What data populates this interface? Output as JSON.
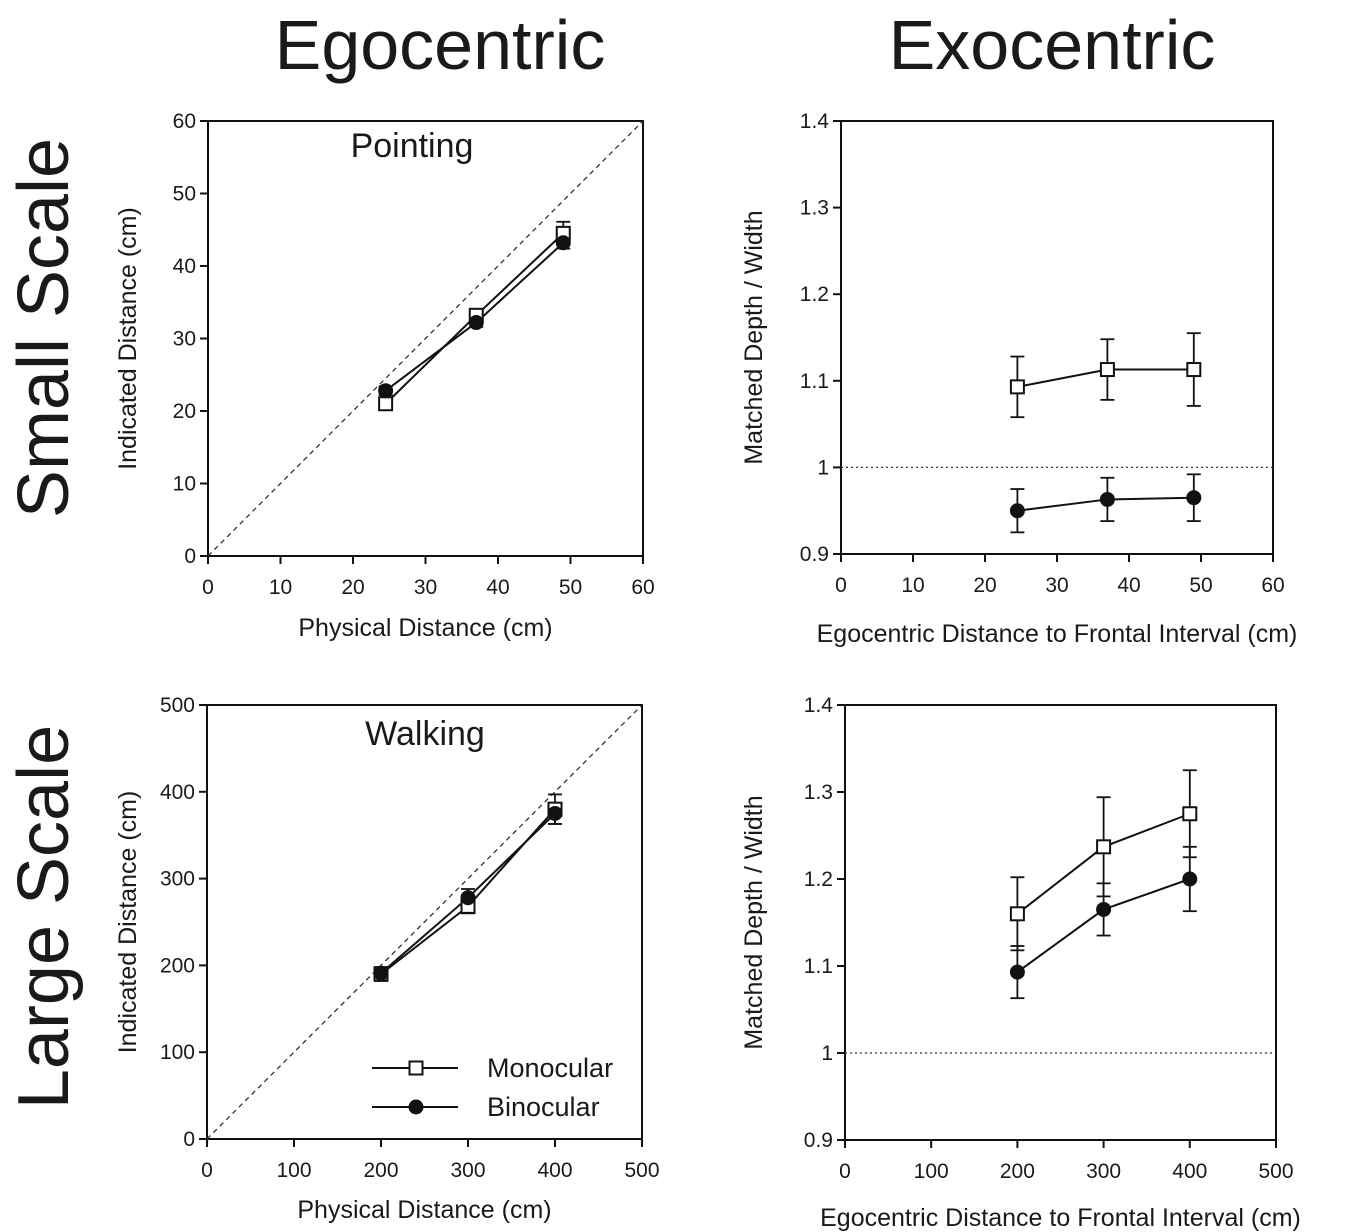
{
  "column_titles": [
    "Egocentric",
    "Exocentric"
  ],
  "row_titles": [
    "Small Scale",
    "Large Scale"
  ],
  "chart_data": [
    {
      "type": "line",
      "panel_title": "Pointing",
      "xlabel": "Physical Distance (cm)",
      "ylabel": "Indicated Distance (cm)",
      "xlim": [
        0,
        60
      ],
      "ylim": [
        0,
        60
      ],
      "xticks": [
        0,
        10,
        20,
        30,
        40,
        50,
        60
      ],
      "yticks": [
        0,
        10,
        20,
        30,
        40,
        50,
        60
      ],
      "reference_line": {
        "style": "dashed",
        "points": [
          [
            0,
            0
          ],
          [
            60,
            60
          ]
        ]
      },
      "series": [
        {
          "name": "Monocular",
          "marker": "open-square",
          "x": [
            24.5,
            37,
            49
          ],
          "y": [
            21,
            33.2,
            44.5
          ],
          "err": [
            0.7,
            0.8,
            1.6
          ]
        },
        {
          "name": "Binocular",
          "marker": "filled-circle",
          "x": [
            24.5,
            37,
            49
          ],
          "y": [
            22.8,
            32.2,
            43.2
          ],
          "err": [
            0.6,
            0.6,
            0.8
          ]
        }
      ]
    },
    {
      "type": "line",
      "xlabel": "Egocentric Distance to Frontal Interval (cm)",
      "ylabel": "Matched Depth / Width",
      "xlim": [
        0,
        60
      ],
      "ylim": [
        0.9,
        1.4
      ],
      "xticks": [
        0,
        10,
        20,
        30,
        40,
        50,
        60
      ],
      "yticks": [
        0.9,
        1,
        1.1,
        1.2,
        1.3,
        1.4
      ],
      "ytick_labels": [
        "0.9",
        "1",
        "1.1",
        "1.2",
        "1.3",
        "1.4"
      ],
      "reference_line": {
        "style": "dotted",
        "points": [
          [
            0,
            1
          ],
          [
            60,
            1
          ]
        ]
      },
      "series": [
        {
          "name": "Monocular",
          "marker": "open-square",
          "x": [
            24.5,
            37,
            49
          ],
          "y": [
            1.093,
            1.113,
            1.113
          ],
          "err": [
            0.035,
            0.035,
            0.042
          ]
        },
        {
          "name": "Binocular",
          "marker": "filled-circle",
          "x": [
            24.5,
            37,
            49
          ],
          "y": [
            0.95,
            0.963,
            0.965
          ],
          "err": [
            0.025,
            0.025,
            0.027
          ]
        }
      ]
    },
    {
      "type": "line",
      "panel_title": "Walking",
      "xlabel": "Physical Distance (cm)",
      "ylabel": "Indicated Distance (cm)",
      "xlim": [
        0,
        500
      ],
      "ylim": [
        0,
        500
      ],
      "xticks": [
        0,
        100,
        200,
        300,
        400,
        500
      ],
      "yticks": [
        0,
        100,
        200,
        300,
        400,
        500
      ],
      "reference_line": {
        "style": "dashed",
        "points": [
          [
            0,
            0
          ],
          [
            500,
            500
          ]
        ]
      },
      "legend": {
        "placement": "bottom-right",
        "entries": [
          {
            "label": "Monocular",
            "marker": "open-square"
          },
          {
            "label": "Binocular",
            "marker": "filled-circle"
          }
        ]
      },
      "series": [
        {
          "name": "Monocular",
          "marker": "open-square",
          "x": [
            200,
            300,
            400
          ],
          "y": [
            190,
            268,
            380
          ],
          "err": [
            8,
            8,
            17
          ]
        },
        {
          "name": "Binocular",
          "marker": "filled-circle",
          "x": [
            200,
            300,
            400
          ],
          "y": [
            191,
            278,
            375
          ],
          "err": [
            7,
            10,
            12
          ]
        }
      ]
    },
    {
      "type": "line",
      "xlabel": "Egocentric Distance to Frontal Interval (cm)",
      "ylabel": "Matched Depth / Width",
      "xlim": [
        0,
        500
      ],
      "ylim": [
        0.9,
        1.4
      ],
      "xticks": [
        0,
        100,
        200,
        300,
        400,
        500
      ],
      "yticks": [
        0.9,
        1,
        1.1,
        1.2,
        1.3,
        1.4
      ],
      "ytick_labels": [
        "0.9",
        "1",
        "1.1",
        "1.2",
        "1.3",
        "1.4"
      ],
      "reference_line": {
        "style": "dotted",
        "points": [
          [
            0,
            1
          ],
          [
            500,
            1
          ]
        ]
      },
      "series": [
        {
          "name": "Monocular",
          "marker": "open-square",
          "x": [
            200,
            300,
            400
          ],
          "y": [
            1.16,
            1.237,
            1.275
          ],
          "err": [
            0.042,
            0.057,
            0.05
          ]
        },
        {
          "name": "Binocular",
          "marker": "filled-circle",
          "x": [
            200,
            300,
            400
          ],
          "y": [
            1.093,
            1.165,
            1.2
          ],
          "err": [
            0.03,
            0.03,
            0.037
          ]
        }
      ]
    }
  ]
}
